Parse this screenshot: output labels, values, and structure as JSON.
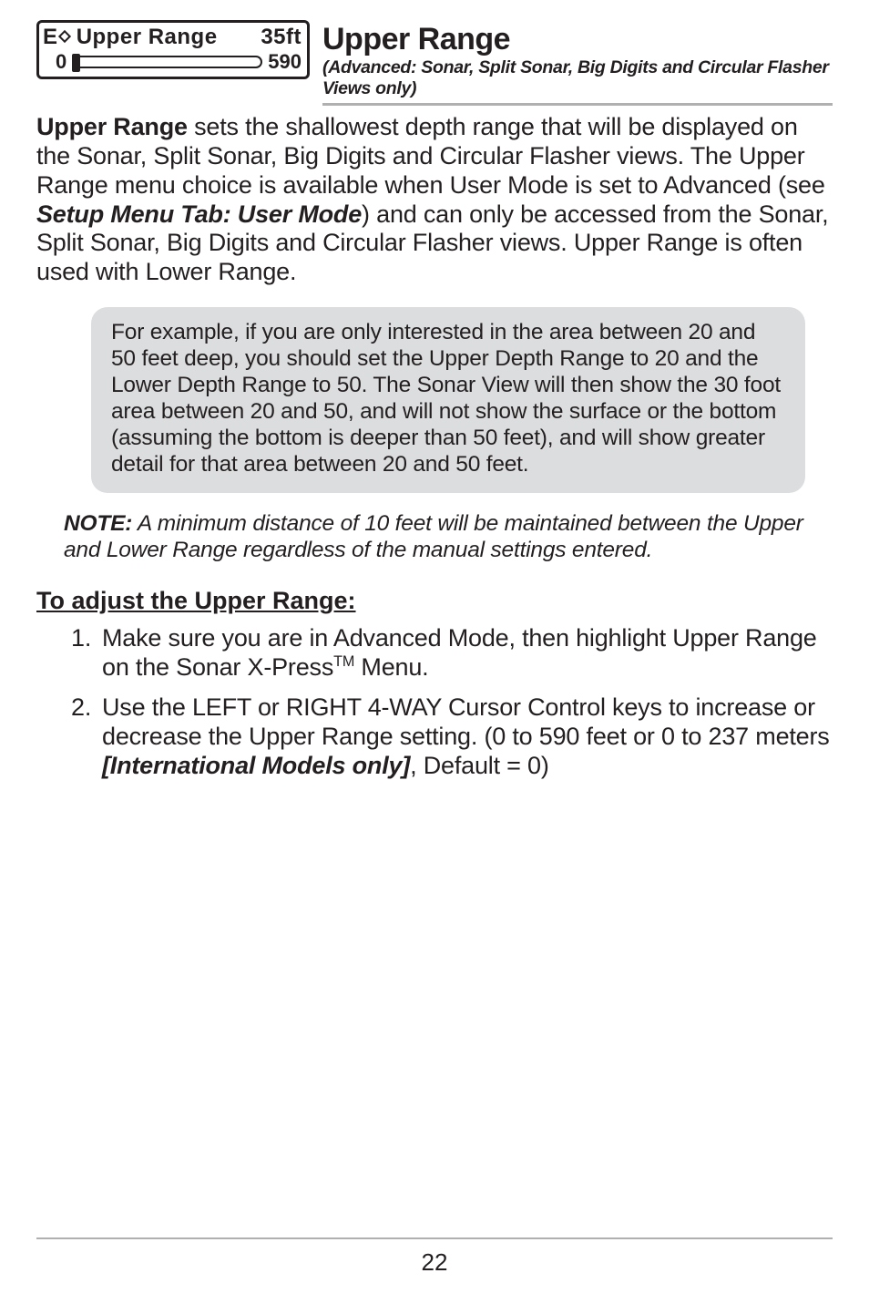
{
  "widget": {
    "prefix_letter": "E",
    "label": "Upper  Range",
    "value": "35ft",
    "min": "0",
    "max": "590"
  },
  "title": "Upper Range",
  "subtitle": "(Advanced: Sonar, Split Sonar, Big Digits and Circular Flasher Views only)",
  "para1_lead": "Upper Range",
  "para1_a": " sets the shallowest depth range that will be displayed on the Sonar, Split Sonar, Big Digits and Circular Flasher views. The Upper Range menu choice is available when User Mode is set to Advanced (see ",
  "para1_ref": "Setup Menu Tab: User Mode",
  "para1_b": ") and can only be accessed from the Sonar, Split Sonar, Big Digits and Circular Flasher views. Upper Range is often used with Lower Range.",
  "callout": "For example, if you are only interested in the area between 20 and 50 feet deep, you should set the Upper Depth Range to 20 and the Lower Depth Range to 50. The Sonar View will then show the 30 foot area between 20 and 50, and will not show the surface or the bottom (assuming the bottom is deeper than 50 feet), and will show greater detail for that area between 20 and 50 feet.",
  "note_label": "NOTE:",
  "note_body": " A minimum distance of 10 feet will be maintained between the Upper and Lower Range regardless of the manual settings entered.",
  "steps_title": "To adjust the Upper Range:",
  "step1_a": "Make sure you are in Advanced Mode, then highlight Upper Range on the Sonar X-Press",
  "step1_b": " Menu.",
  "step2_a": "Use the LEFT or RIGHT 4-WAY Cursor Control keys to increase or decrease the Upper Range setting. (0 to 590 feet or 0 to 237 meters ",
  "step2_em": "[International Models only]",
  "step2_b": ", Default = 0)",
  "page": "22",
  "colors": {
    "text": "#231f20",
    "callout_bg": "#dcddde",
    "rule": "#b0b0b0"
  }
}
